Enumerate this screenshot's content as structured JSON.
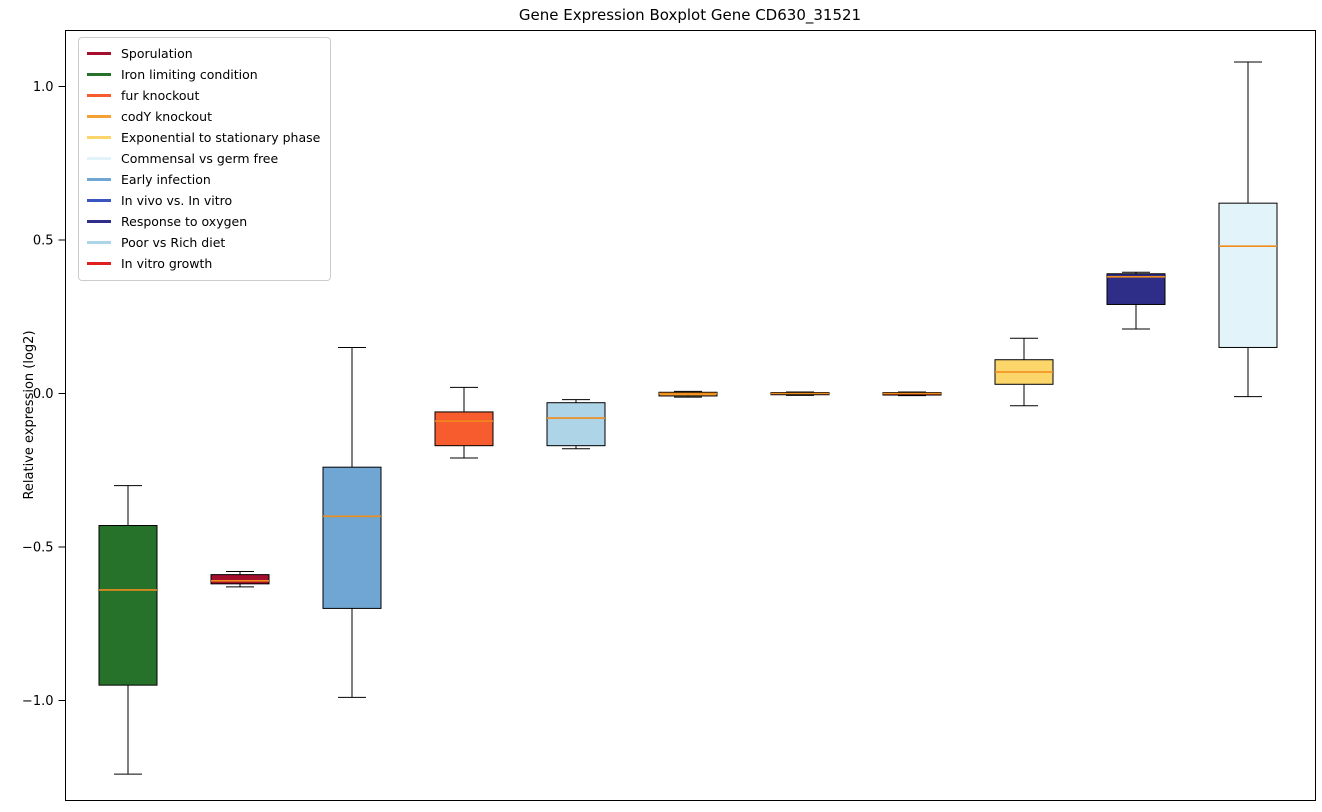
{
  "chart_data": {
    "type": "boxplot",
    "title": "Gene Expression Boxplot Gene CD630_31521",
    "xlabel": "",
    "ylabel": "Relative expression (log2)",
    "ylim": [
      -1.33,
      1.18
    ],
    "grid": false,
    "legend_position": "upper left",
    "median_color": "#ef8c1a",
    "box_edge_color": "#000000",
    "yticks": [
      {
        "v": 1.0,
        "label": "1.0"
      },
      {
        "v": 0.5,
        "label": "0.5"
      },
      {
        "v": 0.0,
        "label": "0.0"
      },
      {
        "v": -0.5,
        "label": "−0.5"
      },
      {
        "v": -1.0,
        "label": "−1.0"
      }
    ],
    "legend": [
      {
        "label": "Sporulation",
        "color": "#a50e2d"
      },
      {
        "label": "Iron limiting condition",
        "color": "#26722b"
      },
      {
        "label": "fur knockout",
        "color": "#f75c2f"
      },
      {
        "label": "codY knockout",
        "color": "#f5a033"
      },
      {
        "label": "Exponential to stationary phase",
        "color": "#fcd66b"
      },
      {
        "label": "Commensal vs germ free",
        "color": "#e2f3f9"
      },
      {
        "label": "Early infection",
        "color": "#6fa6d4"
      },
      {
        "label": "In vivo vs. In vitro",
        "color": "#3b56c0"
      },
      {
        "label": "Response to oxygen",
        "color": "#2e2d87"
      },
      {
        "label": "Poor vs Rich diet",
        "color": "#aed4e8"
      },
      {
        "label": "In vitro growth",
        "color": "#e01f1f"
      }
    ],
    "boxes": [
      {
        "label": "Iron limiting condition",
        "color": "#26722b",
        "whislo": -1.24,
        "q1": -0.95,
        "med": -0.64,
        "q3": -0.43,
        "whishi": -0.3
      },
      {
        "label": "Sporulation",
        "color": "#a50e2d",
        "whislo": -0.63,
        "q1": -0.62,
        "med": -0.61,
        "q3": -0.59,
        "whishi": -0.58
      },
      {
        "label": "Early infection",
        "color": "#6fa6d4",
        "whislo": -0.99,
        "q1": -0.7,
        "med": -0.4,
        "q3": -0.24,
        "whishi": 0.15
      },
      {
        "label": "fur knockout",
        "color": "#f75c2f",
        "whislo": -0.21,
        "q1": -0.17,
        "med": -0.09,
        "q3": -0.06,
        "whishi": 0.02
      },
      {
        "label": "Poor vs Rich diet",
        "color": "#aed4e8",
        "whislo": -0.18,
        "q1": -0.17,
        "med": -0.08,
        "q3": -0.03,
        "whishi": -0.02
      },
      {
        "label": "codY knockout",
        "color": "#f5a033",
        "whislo": -0.012,
        "q1": -0.008,
        "med": 0.0,
        "q3": 0.004,
        "whishi": 0.007
      },
      {
        "label": "In vivo vs. In vitro",
        "color": "#3b56c0",
        "whislo": -0.006,
        "q1": -0.004,
        "med": 0.0,
        "q3": 0.003,
        "whishi": 0.005
      },
      {
        "label": "In vitro growth",
        "color": "#e01f1f",
        "whislo": -0.007,
        "q1": -0.005,
        "med": 0.0,
        "q3": 0.003,
        "whishi": 0.005
      },
      {
        "label": "Exponential to stationary phase",
        "color": "#fcd66b",
        "whislo": -0.04,
        "q1": 0.03,
        "med": 0.07,
        "q3": 0.11,
        "whishi": 0.18
      },
      {
        "label": "Response to oxygen",
        "color": "#2e2d87",
        "whislo": 0.21,
        "q1": 0.29,
        "med": 0.38,
        "q3": 0.39,
        "whishi": 0.395
      },
      {
        "label": "Commensal vs germ free",
        "color": "#e2f3f9",
        "whislo": -0.01,
        "q1": 0.15,
        "med": 0.48,
        "q3": 0.62,
        "whishi": 1.08
      }
    ]
  }
}
